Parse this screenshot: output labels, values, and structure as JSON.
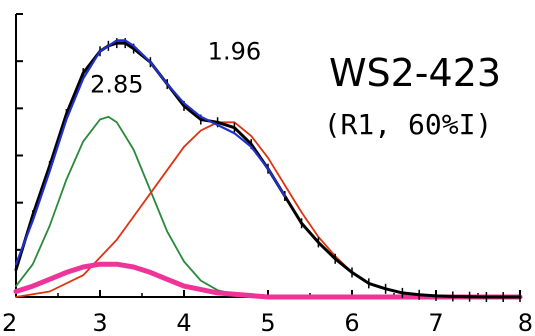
{
  "chart_data": {
    "type": "line",
    "title": "WS2-423",
    "subtitle": "(R1, 60%I)",
    "xlabel": "",
    "ylabel": "",
    "xlim": [
      2,
      8
    ],
    "ylim": [
      0,
      1
    ],
    "x_ticks": [
      "2",
      "3",
      "4",
      "5",
      "6",
      "7",
      "8"
    ],
    "y_tick_count": 6,
    "annotations": [
      {
        "text": "2.85",
        "x": 3.2,
        "y": 0.75
      },
      {
        "text": "1.96",
        "x": 4.6,
        "y": 0.87
      }
    ],
    "series": [
      {
        "role": "data",
        "color": "#000000",
        "x": [
          2.0,
          2.2,
          2.4,
          2.6,
          2.8,
          3.0,
          3.1,
          3.2,
          3.3,
          3.4,
          3.6,
          3.8,
          4.0,
          4.2,
          4.4,
          4.6,
          4.8,
          5.0,
          5.2,
          5.4,
          5.6,
          5.8,
          6.0,
          6.2,
          6.4,
          6.6,
          6.8,
          7.0,
          7.2,
          7.4,
          7.6,
          7.8,
          8.0
        ],
        "y": [
          0.1,
          0.3,
          0.48,
          0.67,
          0.82,
          0.9,
          0.92,
          0.93,
          0.93,
          0.91,
          0.86,
          0.78,
          0.7,
          0.65,
          0.64,
          0.62,
          0.56,
          0.47,
          0.37,
          0.27,
          0.2,
          0.14,
          0.09,
          0.05,
          0.03,
          0.015,
          0.008,
          0.004,
          0.002,
          0.001,
          0.0,
          0.0,
          0.0
        ]
      },
      {
        "role": "fit",
        "color": "#2030cc",
        "x": [
          2.0,
          2.2,
          2.4,
          2.6,
          2.8,
          3.0,
          3.2,
          3.3,
          3.4,
          3.6,
          3.8,
          4.0,
          4.2,
          4.4,
          4.6,
          4.8,
          5.0,
          5.2
        ],
        "y": [
          0.12,
          0.28,
          0.46,
          0.65,
          0.8,
          0.9,
          0.94,
          0.94,
          0.92,
          0.86,
          0.78,
          0.71,
          0.66,
          0.63,
          0.6,
          0.55,
          0.47,
          0.37
        ]
      },
      {
        "role": "component",
        "color": "#2a8a3a",
        "x": [
          2.0,
          2.2,
          2.4,
          2.6,
          2.8,
          3.0,
          3.1,
          3.2,
          3.4,
          3.6,
          3.8,
          4.0,
          4.2,
          4.4,
          4.6,
          4.8,
          5.0
        ],
        "y": [
          0.04,
          0.12,
          0.26,
          0.43,
          0.57,
          0.65,
          0.66,
          0.64,
          0.54,
          0.39,
          0.24,
          0.13,
          0.06,
          0.025,
          0.01,
          0.003,
          0.0
        ]
      },
      {
        "role": "component",
        "color": "#dd3311",
        "x": [
          2.0,
          2.4,
          2.8,
          3.2,
          3.6,
          4.0,
          4.2,
          4.4,
          4.6,
          4.8,
          5.0,
          5.2,
          5.4,
          5.6,
          5.8,
          6.0,
          6.2,
          6.4,
          6.6,
          6.8,
          7.0,
          7.4,
          8.0
        ],
        "y": [
          0.0,
          0.02,
          0.08,
          0.21,
          0.38,
          0.55,
          0.61,
          0.64,
          0.64,
          0.59,
          0.51,
          0.41,
          0.31,
          0.22,
          0.15,
          0.09,
          0.05,
          0.03,
          0.015,
          0.007,
          0.003,
          0.0,
          0.0
        ]
      },
      {
        "role": "component",
        "color": "#ee3399",
        "x": [
          2.0,
          2.2,
          2.4,
          2.6,
          2.8,
          3.0,
          3.2,
          3.4,
          3.6,
          3.8,
          4.0,
          4.4,
          5.0,
          5.6,
          6.2,
          7.0,
          8.0
        ],
        "y": [
          0.02,
          0.04,
          0.065,
          0.09,
          0.11,
          0.12,
          0.12,
          0.11,
          0.09,
          0.065,
          0.04,
          0.015,
          0.0,
          0.0,
          0.0,
          0.0,
          0.0
        ]
      }
    ]
  }
}
